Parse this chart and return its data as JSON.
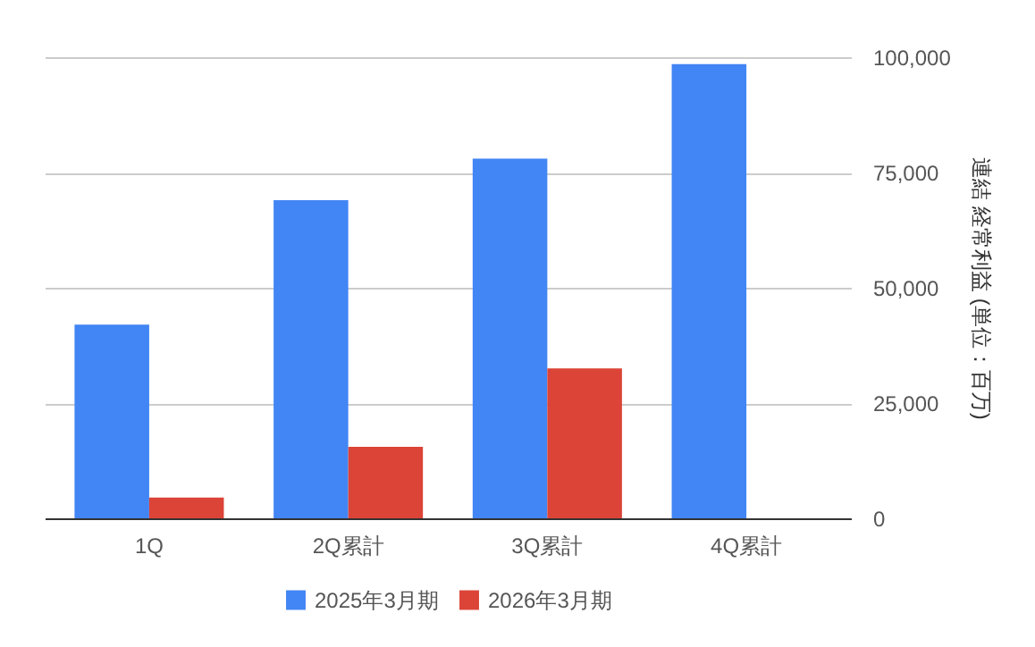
{
  "chart_data": {
    "type": "bar",
    "ylabel": "連結 経常利益 (単位：百万)",
    "categories": [
      "1Q",
      "2Q累計",
      "3Q累計",
      "4Q累計"
    ],
    "series": [
      {
        "name": "2025年3月期",
        "color": "#4285f4",
        "values": [
          42000,
          69000,
          78000,
          98500
        ]
      },
      {
        "name": "2026年3月期",
        "color": "#db4437",
        "values": [
          4500,
          15500,
          32500,
          null
        ]
      }
    ],
    "ylim": [
      0,
      100000
    ],
    "yticks": [
      0,
      {
        "value": 25000,
        "label": "25,000"
      },
      {
        "value": 50000,
        "label": "50,000"
      },
      {
        "value": 75000,
        "label": "75,000"
      },
      {
        "value": 100000,
        "label": "100,000"
      }
    ],
    "grid": "y",
    "legend": "bottom"
  }
}
